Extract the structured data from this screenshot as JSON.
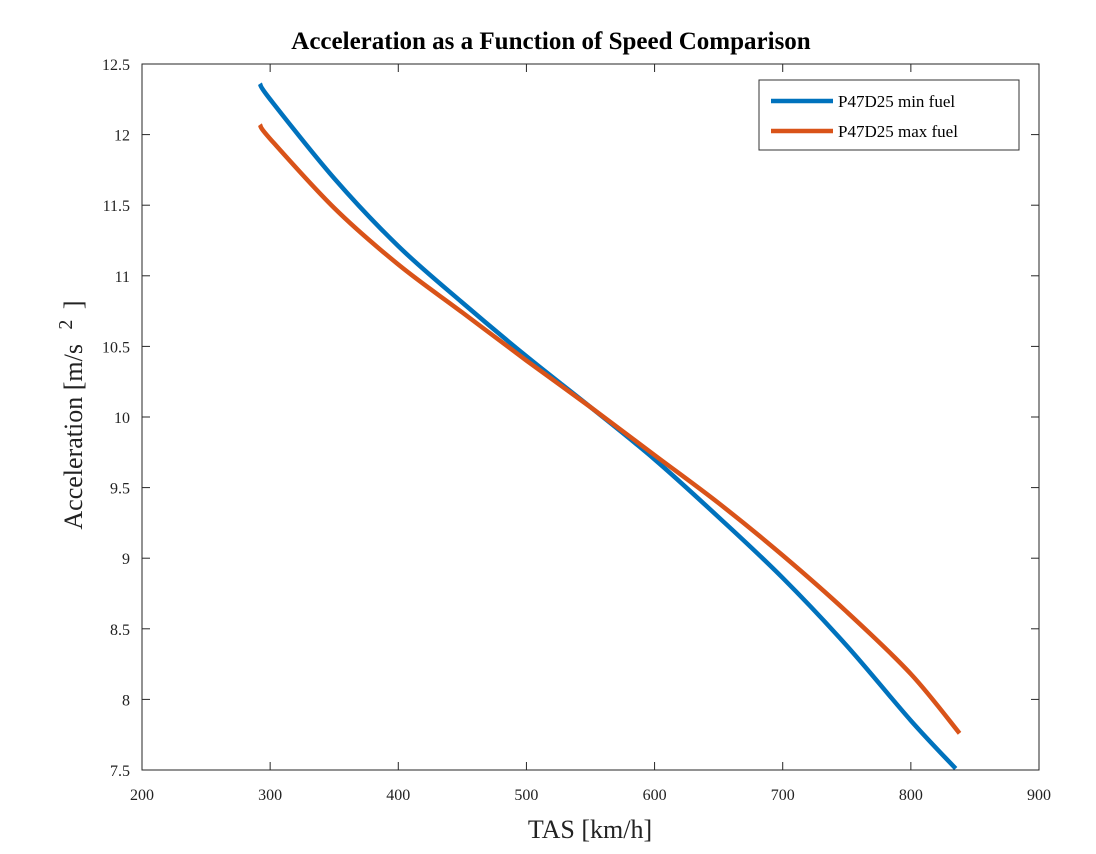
{
  "chart_data": {
    "type": "line",
    "title": "Acceleration as a Function of Speed Comparison",
    "xlabel": "TAS [km/h]",
    "ylabel": "Acceleration [m/s",
    "ylabel_superscript": "2",
    "ylabel_close": "]",
    "xlim": [
      200,
      900
    ],
    "ylim": [
      7.5,
      12.5
    ],
    "xticks": [
      "200",
      "300",
      "400",
      "500",
      "600",
      "700",
      "800",
      "900"
    ],
    "yticks": [
      "7.5",
      "8",
      "8.5",
      "9",
      "9.5",
      "10",
      "10.5",
      "11",
      "11.5",
      "12",
      "12.5"
    ],
    "grid": false,
    "legend_position": "top-right",
    "series": [
      {
        "name": "P47D25 min fuel",
        "color": "#0072BD",
        "x": [
          292,
          300,
          350,
          400,
          450,
          500,
          550,
          600,
          650,
          700,
          750,
          800,
          835
        ],
        "y": [
          12.36,
          12.25,
          11.69,
          11.21,
          10.81,
          10.43,
          10.07,
          9.7,
          9.29,
          8.86,
          8.38,
          7.85,
          7.51
        ]
      },
      {
        "name": "P47D25 max fuel",
        "color": "#D95319",
        "x": [
          292,
          300,
          350,
          400,
          450,
          500,
          550,
          600,
          650,
          700,
          750,
          800,
          838
        ],
        "y": [
          12.07,
          11.97,
          11.48,
          11.08,
          10.74,
          10.4,
          10.07,
          9.73,
          9.39,
          9.02,
          8.62,
          8.18,
          7.76
        ]
      }
    ]
  }
}
